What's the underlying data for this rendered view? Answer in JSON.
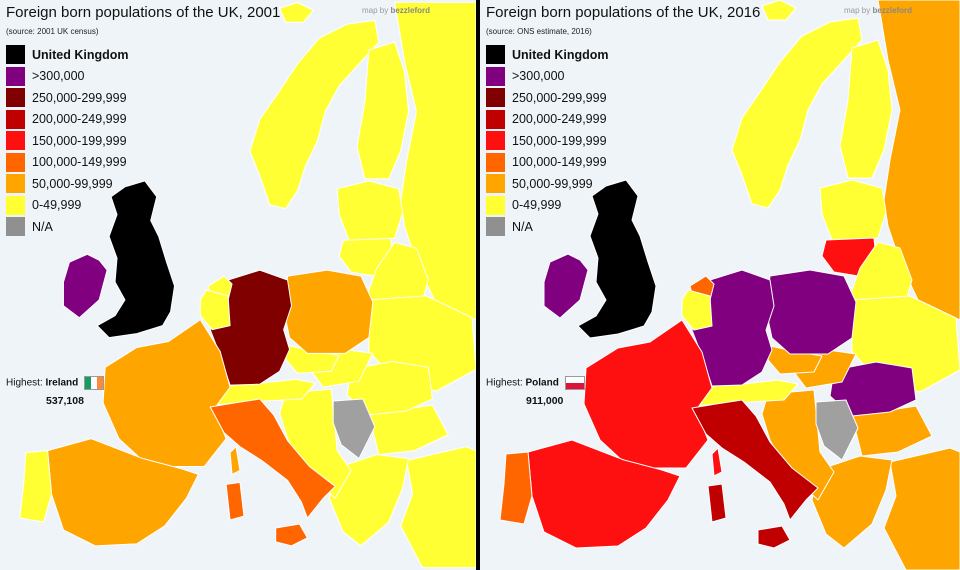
{
  "maps": [
    {
      "title": "Foreign born populations of the UK, 2001",
      "source": "(source: 2001 UK census)",
      "credit_prefix": "map by",
      "credit_name": "bezzleford",
      "highest_label": "Highest:",
      "highest_country": "Ireland",
      "highest_value": "537,108",
      "flag": [
        "#169b62",
        "#ffffff",
        "#ff883e"
      ],
      "regions": {
        "iceland": "#ffff33",
        "scandinavia": "#ffff33",
        "finland": "#ffff33",
        "russia": "#ffff33",
        "baltics": "#ffff33",
        "lithuania": "#ffff33",
        "belarus": "#ffff33",
        "ukraine": "#ffff33",
        "benelux": "#ffff33",
        "netherlands": "#ffff33",
        "germany": "#800000",
        "poland": "#ffa500",
        "czechia": "#ffff33",
        "alps": "#ffff33",
        "france": "#ffa500",
        "iberia": "#ffa500",
        "portugal": "#ffff33",
        "italy": "#ff6600",
        "sicily": "#ff6600",
        "sardinia": "#ff6600",
        "corsica": "#ffa500",
        "hungary": "#ffff33",
        "romania": "#ffff33",
        "serbia": "#a0a0a0",
        "balkans": "#ffff33",
        "greece": "#ffff33",
        "turkey": "#ffff33",
        "ireland": "#800080",
        "uk": "#000000"
      }
    },
    {
      "title": "Foreign born populations of the UK, 2016",
      "source": "(source: ONS estimate, 2016)",
      "credit_prefix": "map by",
      "credit_name": "bezzleford",
      "highest_label": "Highest:",
      "highest_country": "Poland",
      "highest_value": "911,000",
      "flag": [
        "#ffffff",
        "#dc143c"
      ],
      "regions": {
        "iceland": "#ffff33",
        "scandinavia": "#ffff33",
        "finland": "#ffff33",
        "russia": "#ffa500",
        "baltics": "#ffff33",
        "lithuania": "#ff1010",
        "belarus": "#ffff33",
        "ukraine": "#ffff33",
        "benelux": "#ffff33",
        "netherlands": "#ff6600",
        "germany": "#800080",
        "poland": "#800080",
        "czechia": "#ffa500",
        "alps": "#ffff33",
        "france": "#ff1010",
        "iberia": "#ff1010",
        "portugal": "#ff6600",
        "italy": "#c00000",
        "sicily": "#c00000",
        "sardinia": "#c00000",
        "corsica": "#ff1010",
        "hungary": "#ffa500",
        "romania": "#800080",
        "serbia": "#a0a0a0",
        "balkans": "#ffa500",
        "greece": "#ffa500",
        "turkey": "#ffa500",
        "ireland": "#800080",
        "uk": "#000000"
      }
    }
  ],
  "legend": [
    {
      "label": "United Kingdom",
      "color": "#000000"
    },
    {
      "label": ">300,000",
      "color": "#800080"
    },
    {
      "label": "250,000-299,999",
      "color": "#800000"
    },
    {
      "label": "200,000-249,999",
      "color": "#c00000"
    },
    {
      "label": "150,000-199,999",
      "color": "#ff1010"
    },
    {
      "label": "100,000-149,999",
      "color": "#ff6600"
    },
    {
      "label": "50,000-99,999",
      "color": "#ffa500"
    },
    {
      "label": "0-49,999",
      "color": "#ffff33"
    },
    {
      "label": "N/A",
      "color": "#909090"
    }
  ]
}
